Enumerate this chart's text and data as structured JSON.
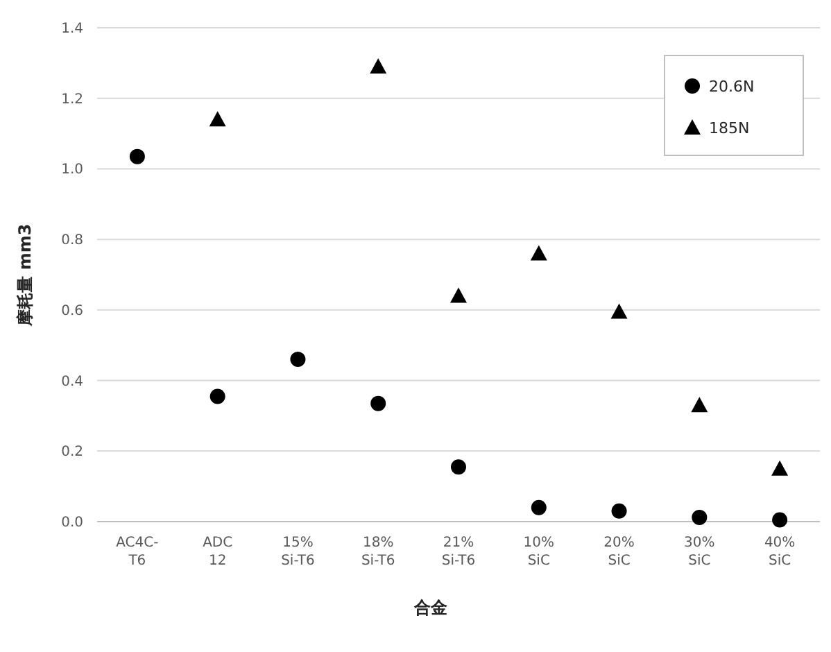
{
  "chart_data": {
    "type": "scatter",
    "xlabel": "合金",
    "ylabel": "摩耗量 mm3",
    "categories": [
      "AC4C-\nT6",
      "ADC\n12",
      "15%\nSi-T6",
      "18%\nSi-T6",
      "21%\nSi-T6",
      "10%\nSiC",
      "20%\nSiC",
      "30%\nSiC",
      "40%\nSiC"
    ],
    "series": [
      {
        "name": "20.6N",
        "color": "#000000",
        "marker": "circle",
        "values": [
          1.035,
          0.355,
          0.46,
          0.335,
          0.155,
          0.04,
          0.03,
          0.012,
          0.005
        ]
      },
      {
        "name": "185N",
        "color": "#000000",
        "marker": "triangle",
        "values": [
          null,
          1.14,
          null,
          1.29,
          0.64,
          0.76,
          0.595,
          0.33,
          0.15
        ]
      }
    ],
    "ylim": [
      0,
      1.4
    ],
    "yticks": [
      {
        "value": 0,
        "label": "0.0"
      },
      0.2,
      0.4,
      0.6,
      0.8,
      {
        "value": 1,
        "label": "1.0"
      },
      1.2,
      1.4
    ],
    "grid": "y",
    "legend": "top right"
  }
}
